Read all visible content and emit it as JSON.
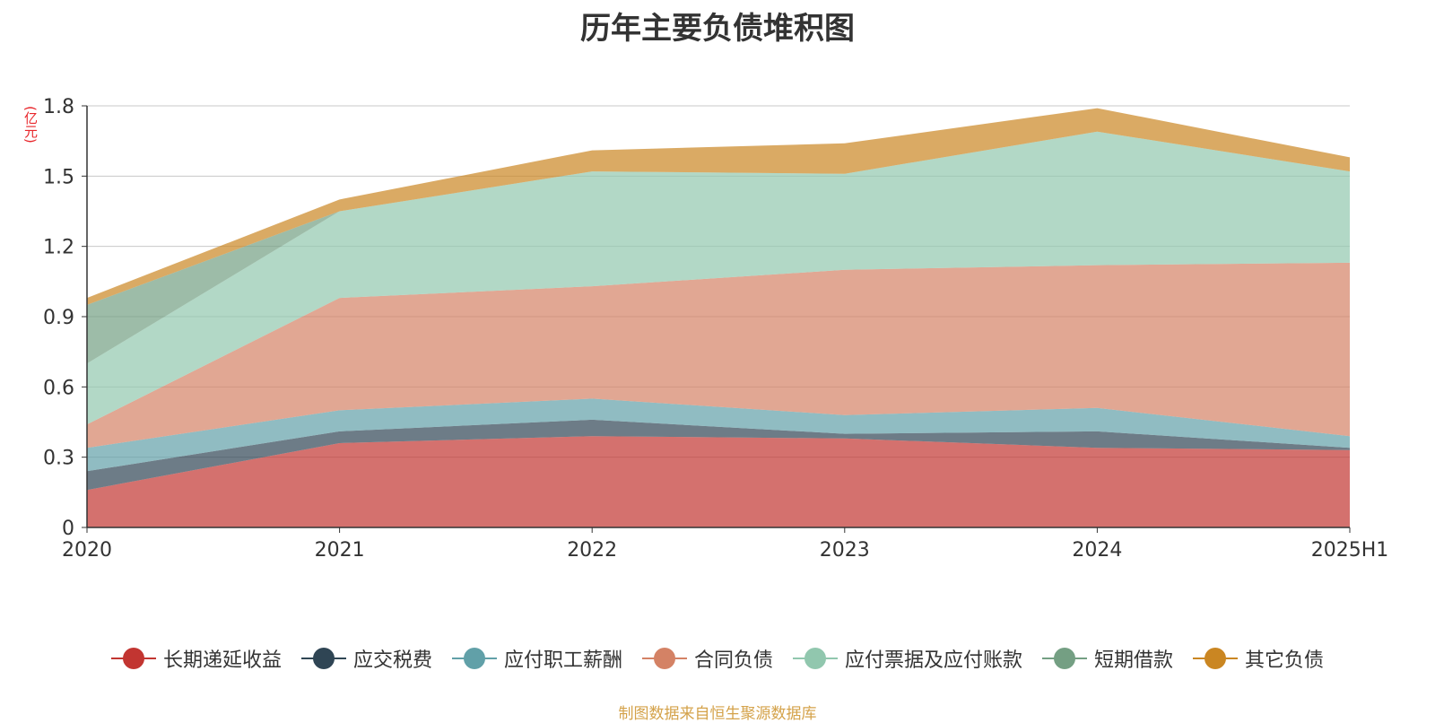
{
  "chart_data": {
    "type": "area",
    "title": "历年主要负债堆积图",
    "ylabel": "(亿元)",
    "categories": [
      "2020",
      "2021",
      "2022",
      "2023",
      "2024",
      "2025H1"
    ],
    "ylim": [
      0,
      1.8
    ],
    "yticks": [
      "0",
      "0.3",
      "0.6",
      "0.9",
      "1.2",
      "1.5",
      "1.8"
    ],
    "stacked": true,
    "grid": true,
    "legend_position": "bottom",
    "series": [
      {
        "name": "长期递延收益",
        "color": "#c23531",
        "values": [
          0.16,
          0.36,
          0.39,
          0.38,
          0.34,
          0.33
        ]
      },
      {
        "name": "应交税费",
        "color": "#2f4554",
        "values": [
          0.08,
          0.05,
          0.07,
          0.02,
          0.07,
          0.01
        ]
      },
      {
        "name": "应付职工薪酬",
        "color": "#61a0a8",
        "values": [
          0.1,
          0.09,
          0.09,
          0.08,
          0.1,
          0.05
        ]
      },
      {
        "name": "合同负债",
        "color": "#d48265",
        "values": [
          0.1,
          0.48,
          0.48,
          0.62,
          0.61,
          0.74
        ]
      },
      {
        "name": "应付票据及应付账款",
        "color": "#91c7ae",
        "values": [
          0.26,
          0.37,
          0.49,
          0.41,
          0.57,
          0.39
        ]
      },
      {
        "name": "短期借款",
        "color": "#749f83",
        "values": [
          0.25,
          0.0,
          0.0,
          0.0,
          0.0,
          0.0
        ]
      },
      {
        "name": "其它负债",
        "color": "#ca8622",
        "values": [
          0.03,
          0.05,
          0.09,
          0.13,
          0.1,
          0.06
        ]
      }
    ]
  },
  "footer": {
    "source": "制图数据来自恒生聚源数据库"
  }
}
